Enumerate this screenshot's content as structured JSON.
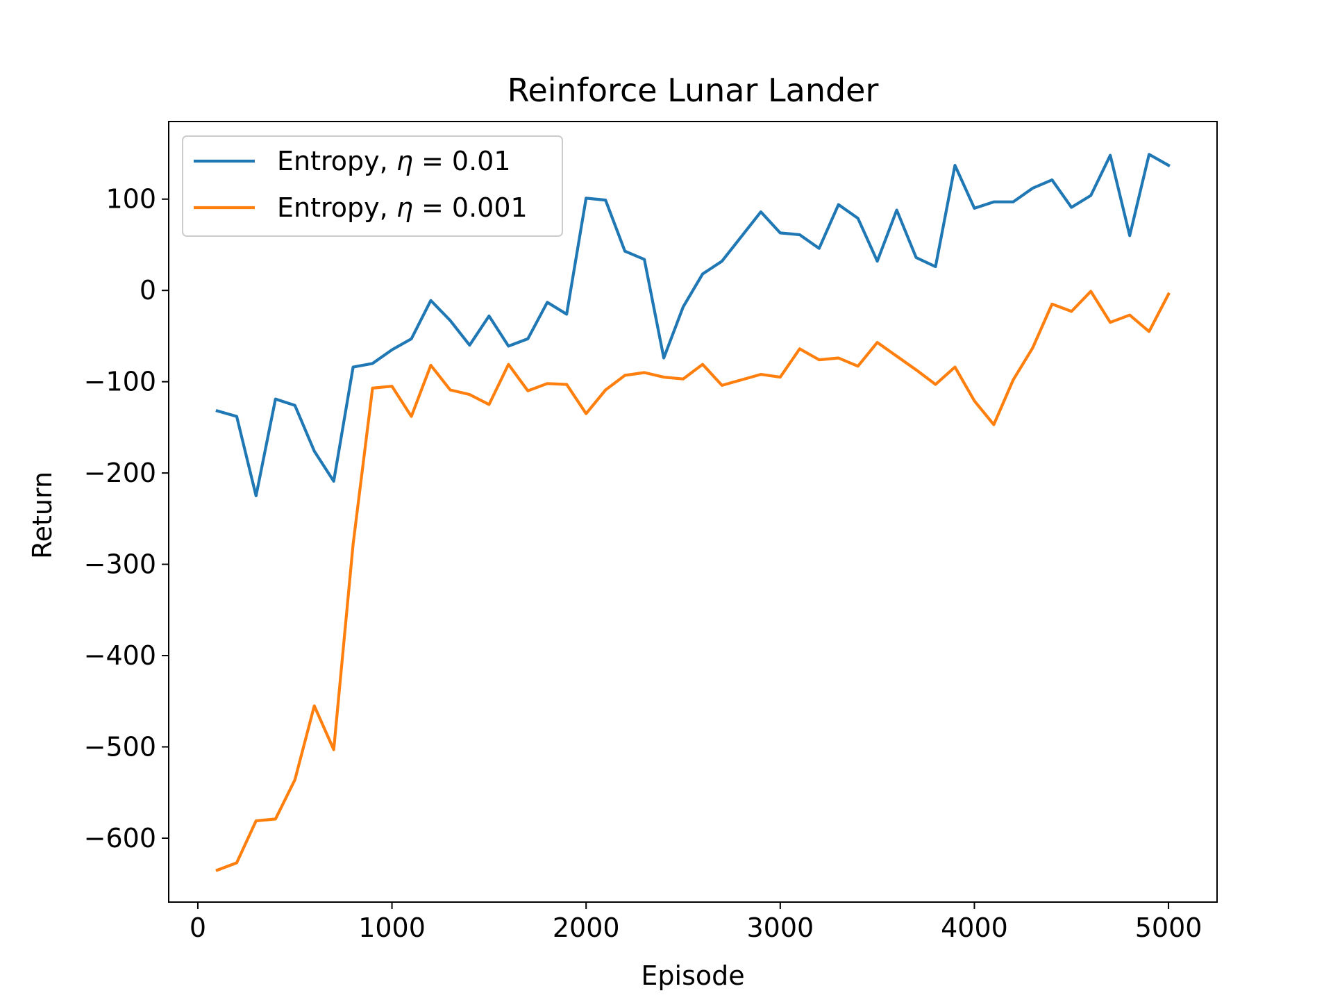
{
  "chart_data": {
    "type": "line",
    "title": "Reinforce Lunar Lander",
    "xlabel": "Episode",
    "ylabel": "Return",
    "xlim": [
      -150,
      5250
    ],
    "ylim": [
      -670,
      185
    ],
    "xticks": [
      0,
      1000,
      2000,
      3000,
      4000,
      5000
    ],
    "xtick_labels": [
      "0",
      "1000",
      "2000",
      "3000",
      "4000",
      "5000"
    ],
    "yticks": [
      -600,
      -500,
      -400,
      -300,
      -200,
      -100,
      0,
      100
    ],
    "ytick_labels": [
      "−600",
      "−500",
      "−400",
      "−300",
      "−200",
      "−100",
      "0",
      "100"
    ],
    "grid": false,
    "legend_position": "top-left",
    "x": [
      100,
      200,
      300,
      400,
      500,
      600,
      700,
      800,
      900,
      1000,
      1100,
      1200,
      1300,
      1400,
      1500,
      1600,
      1700,
      1800,
      1900,
      2000,
      2100,
      2200,
      2300,
      2400,
      2500,
      2600,
      2700,
      2800,
      2900,
      3000,
      3100,
      3200,
      3300,
      3400,
      3500,
      3600,
      3700,
      3800,
      3900,
      4000,
      4100,
      4200,
      4300,
      4400,
      4500,
      4600,
      4700,
      4800,
      4900,
      5000
    ],
    "series": [
      {
        "name": "Entropy, η = 0.01",
        "legend_prefix": "Entropy, ",
        "legend_symbol": "η",
        "legend_suffix": " = 0.01",
        "color": "#1f77b4",
        "values": [
          -132,
          -138,
          -225,
          -119,
          -126,
          -176,
          -209,
          -84,
          -80,
          -65,
          -53,
          -11,
          -33,
          -60,
          -28,
          -61,
          -53,
          -13,
          -26,
          101,
          99,
          43,
          34,
          -74,
          -18,
          18,
          32,
          59,
          86,
          63,
          61,
          46,
          94,
          79,
          32,
          88,
          36,
          26,
          137,
          90,
          97,
          97,
          112,
          121,
          91,
          104,
          148,
          60,
          149,
          137
        ]
      },
      {
        "name": "Entropy, η = 0.001",
        "legend_prefix": "Entropy, ",
        "legend_symbol": "η",
        "legend_suffix": " = 0.001",
        "color": "#ff7f0e",
        "values": [
          -635,
          -627,
          -581,
          -579,
          -536,
          -455,
          -503,
          -278,
          -107,
          -105,
          -138,
          -82,
          -109,
          -114,
          -125,
          -81,
          -110,
          -102,
          -103,
          -135,
          -109,
          -93,
          -90,
          -95,
          -97,
          -81,
          -104,
          -98,
          -92,
          -95,
          -64,
          -76,
          -74,
          -83,
          -57,
          -72,
          -87,
          -103,
          -84,
          -121,
          -147,
          -98,
          -63,
          -15,
          -23,
          -1,
          -35,
          -27,
          -45,
          -4
        ]
      }
    ]
  }
}
